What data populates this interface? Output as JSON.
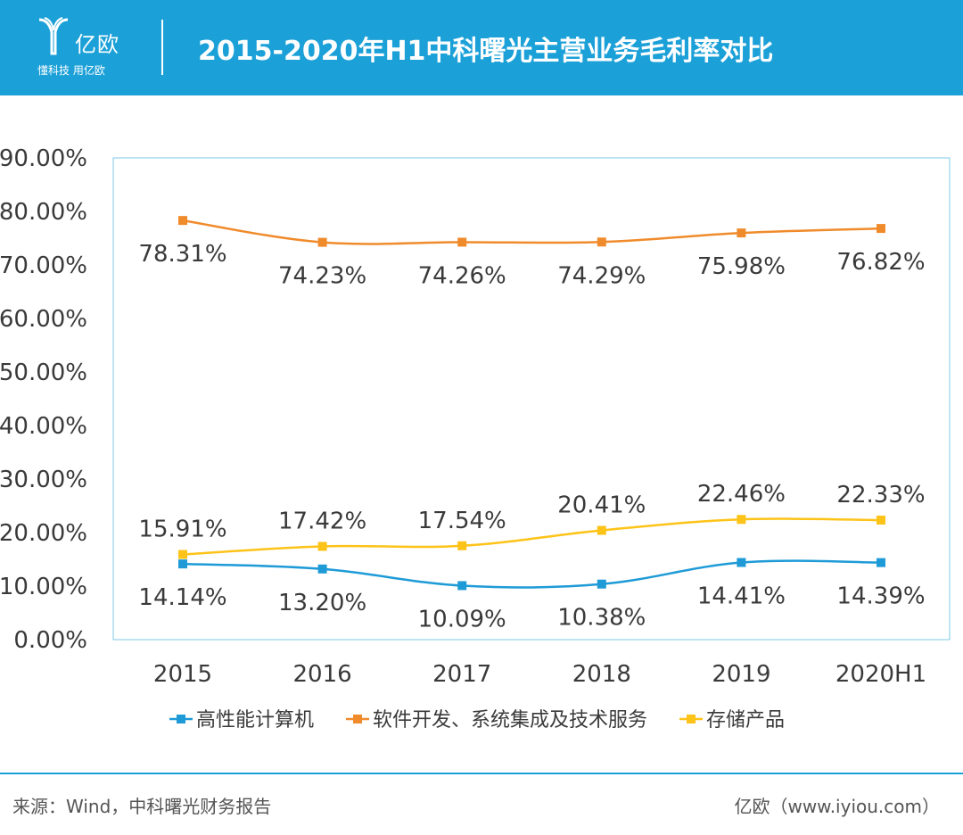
{
  "header": {
    "brand_name": "亿欧",
    "brand_slogan": "懂科技 用亿欧",
    "title": "2015-2020年H1中科曙光主营业务毛利率对比"
  },
  "colors": {
    "header_bg": "#1ba0d8",
    "series_blue": "#1e9bd7",
    "series_orange": "#f08b2c",
    "series_yellow": "#fdc318"
  },
  "chart_data": {
    "type": "line",
    "title": "2015-2020年H1中科曙光主营业务毛利率对比",
    "xlabel": "",
    "ylabel": "",
    "categories": [
      "2015",
      "2016",
      "2017",
      "2018",
      "2019",
      "2020H1"
    ],
    "ylim": [
      0,
      90
    ],
    "yticks": [
      "0.00%",
      "10.00%",
      "20.00%",
      "30.00%",
      "40.00%",
      "50.00%",
      "60.00%",
      "70.00%",
      "80.00%",
      "90.00%"
    ],
    "grid": false,
    "legend_position": "bottom",
    "series": [
      {
        "name": "高性能计算机",
        "color": "#1e9bd7",
        "values": [
          14.14,
          13.2,
          10.09,
          10.38,
          14.41,
          14.39
        ],
        "labels": [
          "14.14%",
          "13.20%",
          "10.09%",
          "10.38%",
          "14.41%",
          "14.39%"
        ],
        "label_position": "below"
      },
      {
        "name": "软件开发、系统集成及技术服务",
        "color": "#f08b2c",
        "values": [
          78.31,
          74.23,
          74.26,
          74.29,
          75.98,
          76.82
        ],
        "labels": [
          "78.31%",
          "74.23%",
          "74.26%",
          "74.29%",
          "75.98%",
          "76.82%"
        ],
        "label_position": "below"
      },
      {
        "name": "存储产品",
        "color": "#fdc318",
        "values": [
          15.91,
          17.42,
          17.54,
          20.41,
          22.46,
          22.33
        ],
        "labels": [
          "15.91%",
          "17.42%",
          "17.54%",
          "20.41%",
          "22.46%",
          "22.33%"
        ],
        "label_position": "above"
      }
    ]
  },
  "footer": {
    "source": "来源：Wind，中科曙光财务报告",
    "brand": "亿欧（www.iyiou.com）"
  }
}
